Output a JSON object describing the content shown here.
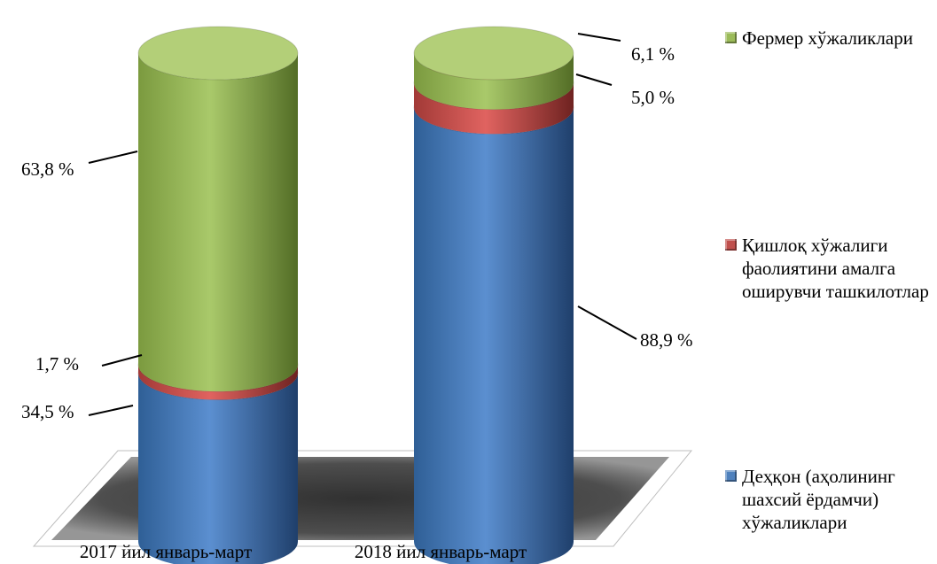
{
  "chart_data": {
    "type": "bar",
    "stacked": true,
    "three_d": "cylinder",
    "categories": [
      "2017 йил январь-март",
      "2018 йил январь-март"
    ],
    "series": [
      {
        "name": "Деҳқон (аҳолининг шахсий ёрдамчи) хўжаликлари",
        "values": [
          34.5,
          88.9
        ],
        "labels": [
          "34,5 %",
          "88,9 %"
        ],
        "color": "#4f81bd"
      },
      {
        "name": "Қишлоқ хўжалиги фаолиятини амалга оширувчи ташкилотлар",
        "values": [
          1.7,
          5.0
        ],
        "labels": [
          "1,7 %",
          "5,0 %"
        ],
        "color": "#c0504d"
      },
      {
        "name": "Фермер хўжаликлари",
        "values": [
          63.8,
          6.1
        ],
        "labels": [
          "63,8 %",
          "6,1 %"
        ],
        "color": "#9bbb59"
      }
    ],
    "ylim": [
      0,
      100
    ],
    "legend_position": "right",
    "grid": false
  },
  "legend": {
    "items": [
      {
        "text": "Фермер хўжаликлари",
        "color": "#9bbb59"
      },
      {
        "text": "Қишлоқ хўжалиги фаолиятини амалга оширувчи ташкилотлар",
        "color": "#c0504d"
      },
      {
        "text": "Деҳқон (аҳолининг шахсий ёрдамчи) хўжаликлари",
        "color": "#4f81bd"
      }
    ]
  }
}
